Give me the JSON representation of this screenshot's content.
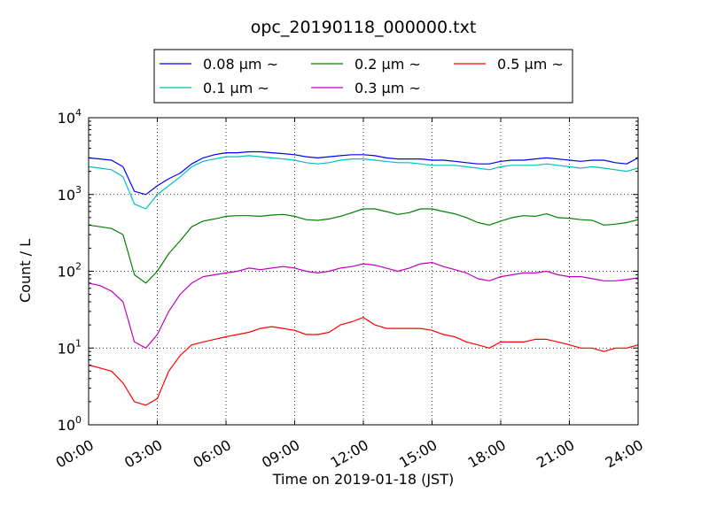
{
  "chart_data": {
    "type": "line",
    "title": "opc_20190118_000000.txt",
    "xlabel": "Time on 2019-01-18 (JST)",
    "ylabel": "Count / L",
    "y_scale": "log",
    "ylim": [
      1,
      10000
    ],
    "xlim": [
      "00:00",
      "24:00"
    ],
    "x_ticks": [
      "00:00",
      "03:00",
      "06:00",
      "09:00",
      "12:00",
      "15:00",
      "18:00",
      "21:00",
      "24:00"
    ],
    "y_ticks": [
      {
        "value": 1,
        "base": "10",
        "exp": "0"
      },
      {
        "value": 10,
        "base": "10",
        "exp": "1"
      },
      {
        "value": 100,
        "base": "10",
        "exp": "2"
      },
      {
        "value": 1000,
        "base": "10",
        "exp": "3"
      },
      {
        "value": 10000,
        "base": "10",
        "exp": "4"
      }
    ],
    "grid": true,
    "legend_position": "top-center",
    "x": [
      "00:00",
      "00:30",
      "01:00",
      "01:30",
      "02:00",
      "02:30",
      "03:00",
      "03:30",
      "04:00",
      "04:30",
      "05:00",
      "05:30",
      "06:00",
      "06:30",
      "07:00",
      "07:30",
      "08:00",
      "08:30",
      "09:00",
      "09:30",
      "10:00",
      "10:30",
      "11:00",
      "11:30",
      "12:00",
      "12:30",
      "13:00",
      "13:30",
      "14:00",
      "14:30",
      "15:00",
      "15:30",
      "16:00",
      "16:30",
      "17:00",
      "17:30",
      "18:00",
      "18:30",
      "19:00",
      "19:30",
      "20:00",
      "20:30",
      "21:00",
      "21:30",
      "22:00",
      "22:30",
      "23:00",
      "23:30",
      "24:00"
    ],
    "series": [
      {
        "name": "0.08 μm ~",
        "color": "#0000ff",
        "values": [
          3000,
          2900,
          2800,
          2300,
          1100,
          1000,
          1300,
          1600,
          1900,
          2500,
          3000,
          3300,
          3500,
          3500,
          3600,
          3600,
          3500,
          3400,
          3300,
          3100,
          3000,
          3100,
          3200,
          3300,
          3300,
          3200,
          3000,
          2900,
          2900,
          2900,
          2800,
          2800,
          2700,
          2600,
          2500,
          2500,
          2700,
          2800,
          2800,
          2900,
          3000,
          2900,
          2800,
          2700,
          2800,
          2800,
          2600,
          2500,
          3000
        ]
      },
      {
        "name": "0.1 μm ~",
        "color": "#00bfbf",
        "values": [
          2300,
          2200,
          2100,
          1700,
          750,
          650,
          1000,
          1300,
          1700,
          2300,
          2700,
          2900,
          3100,
          3100,
          3200,
          3100,
          3000,
          2900,
          2800,
          2600,
          2500,
          2600,
          2800,
          2900,
          2900,
          2800,
          2700,
          2600,
          2600,
          2500,
          2400,
          2400,
          2400,
          2300,
          2200,
          2100,
          2300,
          2400,
          2400,
          2400,
          2500,
          2400,
          2300,
          2200,
          2300,
          2200,
          2100,
          2000,
          2200
        ]
      },
      {
        "name": "0.2 μm ~",
        "color": "#008000",
        "values": [
          400,
          380,
          360,
          300,
          90,
          70,
          100,
          170,
          250,
          380,
          450,
          480,
          520,
          530,
          530,
          520,
          540,
          550,
          520,
          470,
          460,
          480,
          520,
          580,
          650,
          650,
          600,
          550,
          580,
          650,
          650,
          600,
          560,
          500,
          430,
          400,
          450,
          500,
          530,
          520,
          560,
          500,
          490,
          470,
          460,
          400,
          410,
          430,
          470
        ]
      },
      {
        "name": "0.3 μm ~",
        "color": "#bf00bf",
        "values": [
          70,
          65,
          55,
          40,
          12,
          10,
          15,
          30,
          50,
          70,
          85,
          90,
          95,
          100,
          110,
          105,
          110,
          115,
          110,
          100,
          95,
          100,
          110,
          115,
          125,
          120,
          110,
          100,
          110,
          125,
          130,
          115,
          105,
          95,
          80,
          75,
          85,
          90,
          95,
          95,
          100,
          90,
          85,
          85,
          80,
          75,
          75,
          78,
          82
        ]
      },
      {
        "name": "0.5 μm ~",
        "color": "#ff0000",
        "values": [
          6,
          5.5,
          5,
          3.5,
          2,
          1.8,
          2.2,
          5,
          8,
          11,
          12,
          13,
          14,
          15,
          16,
          18,
          19,
          18,
          17,
          15,
          15,
          16,
          20,
          22,
          25,
          20,
          18,
          18,
          18,
          18,
          17,
          15,
          14,
          12,
          11,
          10,
          12,
          12,
          12,
          13,
          13,
          12,
          11,
          10,
          10,
          9,
          10,
          10,
          11
        ]
      }
    ]
  }
}
